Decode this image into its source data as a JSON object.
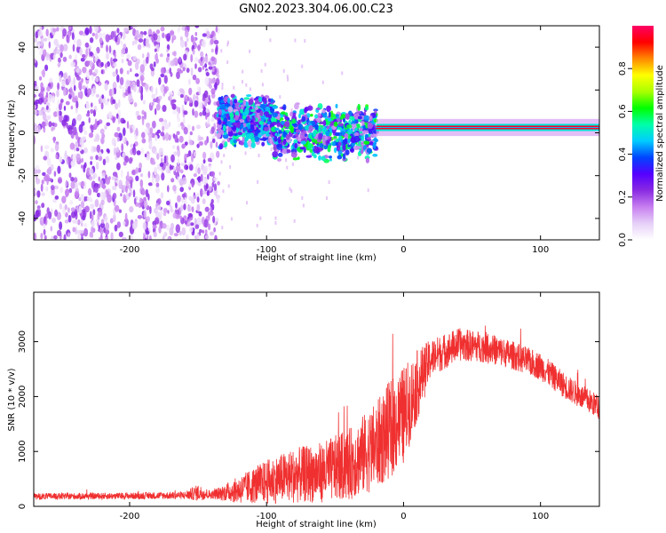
{
  "title": "GN02.2023.304.06.00.C23",
  "chart_data": [
    {
      "type": "heatmap",
      "name": "spectrogram",
      "xlabel": "Height of straight line (km)",
      "ylabel": "Frequency (Hz)",
      "xlim": [
        -270,
        143
      ],
      "ylim": [
        -50,
        50
      ],
      "xticks": [
        -200,
        -100,
        0,
        100
      ],
      "yticks": [
        -40,
        -20,
        0,
        20,
        40
      ],
      "colorbar": {
        "label": "Normalized spectral amplitude",
        "range": [
          0,
          1
        ],
        "ticks": [
          0.0,
          0.2,
          0.4,
          0.6,
          0.8
        ],
        "colormap": [
          "#ffffff",
          "#e6d0f8",
          "#c77ff0",
          "#8a2be2",
          "#5500ff",
          "#0044ff",
          "#00ccff",
          "#00ffaa",
          "#00ff00",
          "#aaff00",
          "#ffff00",
          "#ff8800",
          "#ff0000",
          "#ff0066"
        ]
      },
      "regions": [
        {
          "x": [
            -270,
            -135
          ],
          "f": [
            -50,
            50
          ],
          "amplitude": 0.2,
          "pattern": "scattered noise"
        },
        {
          "x": [
            -135,
            -95
          ],
          "f": [
            -5,
            17
          ],
          "amplitude": 0.35
        },
        {
          "x": [
            -95,
            -20
          ],
          "f": [
            -12,
            12
          ],
          "amplitude": 0.4
        },
        {
          "x": [
            -20,
            143
          ],
          "f": [
            0,
            5
          ],
          "amplitude": 0.95,
          "pattern": "narrow carrier line"
        }
      ]
    },
    {
      "type": "line",
      "name": "snr",
      "xlabel": "Height of straight line (km)",
      "ylabel": "SNR (10 * v/v)",
      "xlim": [
        -270,
        143
      ],
      "ylim": [
        0,
        3900
      ],
      "xticks": [
        -200,
        -100,
        0,
        100
      ],
      "yticks": [
        0,
        1000,
        2000,
        3000
      ],
      "color": "#f03030",
      "envelope": {
        "x": [
          -270,
          -200,
          -160,
          -150,
          -140,
          -120,
          -100,
          -80,
          -60,
          -40,
          -20,
          -10,
          0,
          10,
          20,
          40,
          60,
          80,
          100,
          120,
          143
        ],
        "mean": [
          180,
          190,
          200,
          250,
          210,
          300,
          450,
          560,
          620,
          760,
          1100,
          1400,
          1650,
          2200,
          2700,
          2950,
          2900,
          2750,
          2550,
          2150,
          1800
        ],
        "spread": [
          60,
          60,
          70,
          150,
          70,
          250,
          400,
          500,
          550,
          650,
          800,
          900,
          900,
          650,
          350,
          300,
          280,
          260,
          250,
          230,
          220
        ]
      }
    }
  ]
}
